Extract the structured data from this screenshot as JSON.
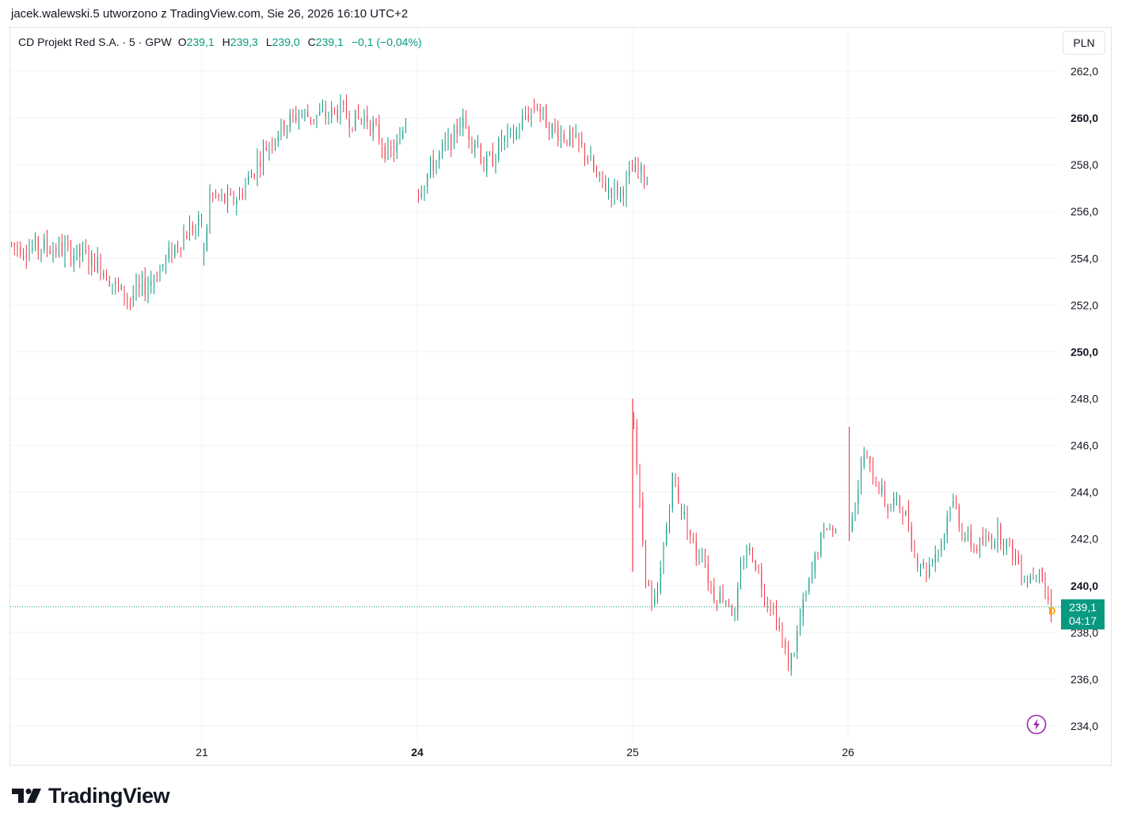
{
  "header": {
    "text": "jacek.walewski.5 utworzono z TradingView.com, Sie 26, 2026 16:10 UTC+2"
  },
  "legend": {
    "symbol": "CD Projekt Red S.A. · 5 · GPW",
    "open_label": "O",
    "open": "239,1",
    "high_label": "H",
    "high": "239,3",
    "low_label": "L",
    "low": "239,0",
    "close_label": "C",
    "close": "239,1",
    "change": "−0,1 (−0,04%)"
  },
  "currency": "PLN",
  "last_price": {
    "price": "239,1",
    "countdown": "04:17",
    "marker": "D"
  },
  "brand": "TradingView",
  "colors": {
    "up": "#089981",
    "down": "#f23645",
    "grid": "#f0f3fa",
    "accent": "#9c27b0"
  },
  "icons": {
    "alert": "lightning-icon",
    "logo": "tradingview-logo-icon"
  },
  "chart_data": {
    "type": "candlestick",
    "interval_minutes": 5,
    "ylim": [
      233.5,
      264
    ],
    "y_ticks": [
      {
        "value": 262,
        "label": "262,0",
        "bold": false
      },
      {
        "value": 260,
        "label": "260,0",
        "bold": true
      },
      {
        "value": 258,
        "label": "258,0",
        "bold": false
      },
      {
        "value": 256,
        "label": "256,0",
        "bold": false
      },
      {
        "value": 254,
        "label": "254,0",
        "bold": false
      },
      {
        "value": 252,
        "label": "252,0",
        "bold": false
      },
      {
        "value": 250,
        "label": "250,0",
        "bold": true
      },
      {
        "value": 248,
        "label": "248,0",
        "bold": false
      },
      {
        "value": 246,
        "label": "246,0",
        "bold": false
      },
      {
        "value": 244,
        "label": "244,0",
        "bold": false
      },
      {
        "value": 242,
        "label": "242,0",
        "bold": false
      },
      {
        "value": 240,
        "label": "240,0",
        "bold": true
      },
      {
        "value": 238,
        "label": "238,0",
        "bold": false
      },
      {
        "value": 236,
        "label": "236,0",
        "bold": false
      },
      {
        "value": 234,
        "label": "234,0",
        "bold": false
      }
    ],
    "x_ticks": [
      {
        "label": "21",
        "bold": false
      },
      {
        "label": "24",
        "bold": true
      },
      {
        "label": "25",
        "bold": false
      },
      {
        "label": "26",
        "bold": false
      }
    ],
    "sessions": [
      {
        "path": [
          [
            254.6,
            0
          ],
          [
            254.4,
            6
          ],
          [
            254.5,
            10
          ],
          [
            254.4,
            16
          ],
          [
            254.1,
            24
          ],
          [
            253.7,
            30
          ],
          [
            253.2,
            33
          ],
          [
            252.6,
            36
          ],
          [
            252.3,
            40
          ],
          [
            252.7,
            44
          ],
          [
            253.2,
            48
          ],
          [
            253.9,
            52
          ],
          [
            254.7,
            56
          ],
          [
            255.2,
            60
          ],
          [
            255.5,
            64
          ]
        ],
        "range": 2.0,
        "start": 253.9,
        "truncated": true
      },
      {
        "path": [
          [
            254.2,
            0
          ],
          [
            256.7,
            2
          ],
          [
            256.4,
            9
          ],
          [
            256.7,
            12
          ],
          [
            257.6,
            16
          ],
          [
            258.6,
            20
          ],
          [
            259.3,
            24
          ],
          [
            259.8,
            28
          ],
          [
            260.2,
            32
          ],
          [
            260.1,
            35
          ],
          [
            260.1,
            40
          ],
          [
            260.3,
            46
          ],
          [
            259.9,
            50
          ],
          [
            260.0,
            55
          ],
          [
            259.2,
            59
          ],
          [
            258.4,
            62
          ],
          [
            258.9,
            66
          ],
          [
            260.1,
            68
          ]
        ],
        "range": 1.9
      },
      {
        "path": [
          [
            256.9,
            0
          ],
          [
            257.6,
            3
          ],
          [
            258.6,
            8
          ],
          [
            259.2,
            12
          ],
          [
            259.9,
            14
          ],
          [
            259.2,
            18
          ],
          [
            258.9,
            20
          ],
          [
            257.9,
            22
          ],
          [
            258.3,
            25
          ],
          [
            259.0,
            28
          ],
          [
            259.2,
            32
          ],
          [
            260.1,
            36
          ],
          [
            260.6,
            40
          ],
          [
            259.6,
            44
          ],
          [
            259.2,
            50
          ],
          [
            258.6,
            56
          ],
          [
            257.4,
            60
          ],
          [
            257.0,
            64
          ],
          [
            256.9,
            68
          ],
          [
            257.2,
            70
          ],
          [
            257.7,
            72
          ],
          [
            257.6,
            75
          ],
          [
            257.3,
            77
          ]
        ],
        "range": 1.9
      },
      {
        "path": [
          [
            247.1,
            0
          ],
          [
            243.3,
            2
          ],
          [
            240.6,
            4
          ],
          [
            239.0,
            6
          ],
          [
            239.6,
            8
          ],
          [
            241.6,
            10
          ],
          [
            243.6,
            12
          ],
          [
            244.6,
            13
          ],
          [
            243.3,
            16
          ],
          [
            242.6,
            18
          ],
          [
            241.3,
            21
          ],
          [
            241.6,
            23
          ],
          [
            240.3,
            25
          ],
          [
            239.6,
            27
          ],
          [
            239.6,
            30
          ],
          [
            239.3,
            32
          ],
          [
            238.6,
            34
          ],
          [
            240.6,
            36
          ],
          [
            241.6,
            38
          ],
          [
            241.3,
            40
          ],
          [
            240.6,
            42
          ],
          [
            239.6,
            44
          ],
          [
            239.3,
            46
          ],
          [
            238.6,
            48
          ],
          [
            237.6,
            50
          ],
          [
            236.6,
            52
          ],
          [
            237.3,
            54
          ],
          [
            238.6,
            56
          ],
          [
            239.6,
            58
          ],
          [
            240.6,
            60
          ],
          [
            241.6,
            62
          ],
          [
            242.6,
            65
          ],
          [
            242.3,
            68
          ]
        ],
        "range": 1.6
      },
      {
        "path": [
          [
            242.6,
            0
          ],
          [
            244.3,
            3
          ],
          [
            245.6,
            5
          ],
          [
            244.6,
            8
          ],
          [
            244.3,
            10
          ],
          [
            243.3,
            13
          ],
          [
            243.6,
            15
          ],
          [
            243.3,
            18
          ],
          [
            242.6,
            20
          ],
          [
            241.3,
            22
          ],
          [
            241.0,
            24
          ],
          [
            240.6,
            26
          ],
          [
            241.3,
            28
          ],
          [
            241.6,
            30
          ],
          [
            242.3,
            32
          ],
          [
            243.6,
            34
          ],
          [
            243.3,
            36
          ],
          [
            242.3,
            38
          ],
          [
            242.0,
            40
          ],
          [
            241.6,
            42
          ],
          [
            241.8,
            45
          ],
          [
            242.0,
            48
          ],
          [
            242.3,
            50
          ],
          [
            242.0,
            52
          ],
          [
            241.6,
            54
          ],
          [
            241.3,
            56
          ],
          [
            240.6,
            58
          ],
          [
            240.3,
            60
          ],
          [
            240.6,
            62
          ],
          [
            241.0,
            64
          ],
          [
            239.6,
            66
          ],
          [
            239.1,
            68
          ]
        ],
        "range": 1.7,
        "spikes": [
          [
            0,
            246.8
          ]
        ]
      }
    ]
  }
}
